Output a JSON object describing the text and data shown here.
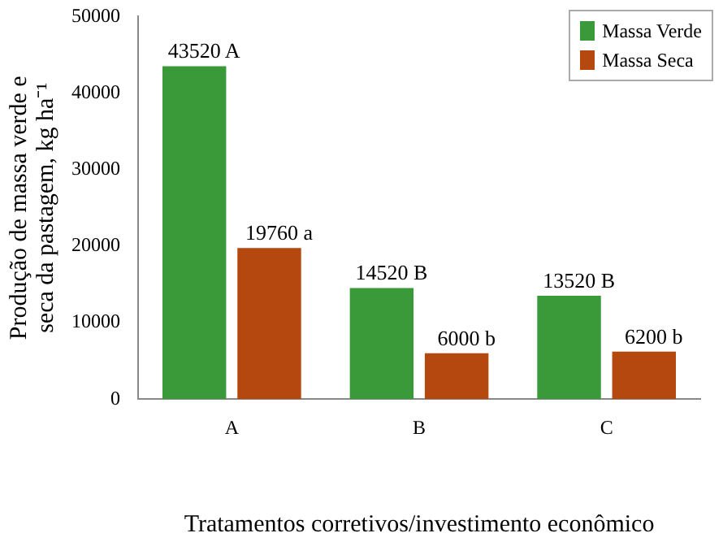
{
  "chart_data": {
    "type": "bar",
    "ylabel": "Produção de massa verde e seca da pastagem, kg ha⁻¹",
    "xlabel": "Tratamentos corretivos/investimento econômico",
    "categories": [
      "A",
      "B",
      "C"
    ],
    "series": [
      {
        "name": "Massa Verde",
        "color": "#3a9a3a",
        "values": [
          43520,
          14520,
          13520
        ],
        "value_labels": [
          "43520 A",
          "14520 B",
          "13520 B"
        ]
      },
      {
        "name": "Massa Seca",
        "color": "#b5480f",
        "values": [
          19760,
          6000,
          6200
        ],
        "value_labels": [
          "19760 a",
          "6000 b",
          "6200 b"
        ]
      }
    ],
    "ylim": [
      0,
      50000
    ],
    "yticks": [
      0,
      10000,
      20000,
      30000,
      40000,
      50000
    ],
    "grid": false,
    "legend": "top right"
  }
}
